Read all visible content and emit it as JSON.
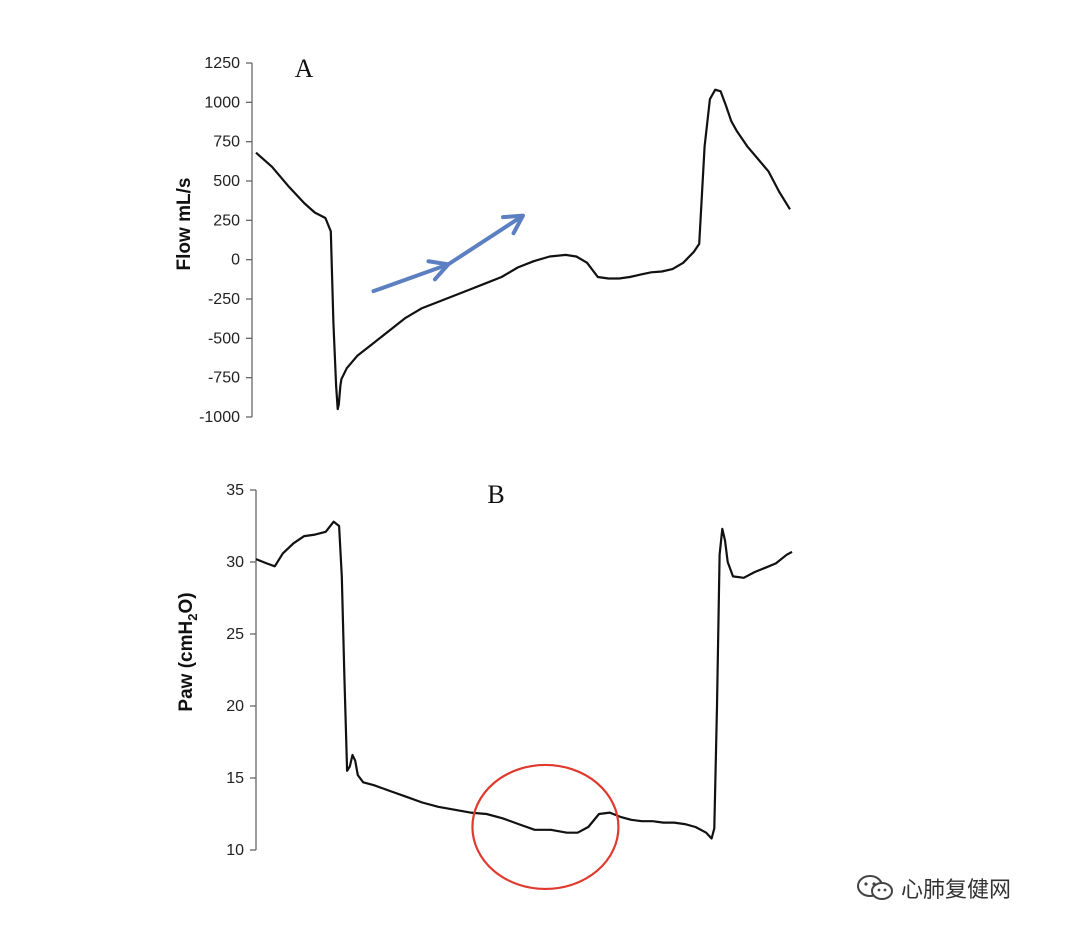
{
  "chart_data": [
    {
      "type": "line",
      "panel": "A",
      "title": "",
      "xlabel": "",
      "ylabel": "Flow mL/s",
      "ylim": [
        -1000,
        1250
      ],
      "yticks": [
        1250,
        1000,
        750,
        500,
        250,
        0,
        -250,
        -500,
        -750,
        -1000
      ],
      "ytick_labels": [
        "1250",
        "1000",
        "750",
        "500",
        "250",
        "0",
        "-250",
        "-500",
        "-750",
        "-1000"
      ],
      "grid": false,
      "xlim": [
        0,
        100
      ],
      "series": [
        {
          "color": "#111111",
          "x": [
            0,
            3,
            6,
            9,
            11,
            13,
            14,
            14.5,
            15,
            15.3,
            15.5,
            15.8,
            16,
            17,
            19,
            22,
            25,
            28,
            31,
            34,
            37,
            40,
            43,
            46,
            49,
            52,
            55,
            58,
            60,
            62,
            64,
            66,
            68,
            70,
            72,
            74,
            76,
            78,
            80,
            82,
            83,
            84,
            85,
            86,
            87,
            88,
            89,
            90,
            92,
            94,
            96,
            98,
            100
          ],
          "y": [
            680,
            590,
            470,
            360,
            300,
            265,
            180,
            -400,
            -800,
            -950,
            -920,
            -800,
            -760,
            -690,
            -610,
            -530,
            -450,
            -370,
            -310,
            -270,
            -230,
            -190,
            -150,
            -110,
            -50,
            -10,
            20,
            30,
            20,
            -20,
            -110,
            -120,
            -120,
            -110,
            -95,
            -80,
            -75,
            -60,
            -20,
            50,
            100,
            720,
            1020,
            1080,
            1070,
            980,
            880,
            820,
            720,
            640,
            560,
            430,
            320
          ]
        }
      ],
      "annotations": [
        {
          "type": "arrow",
          "color": "#5b7fc0",
          "from": [
            22,
            -200
          ],
          "to": [
            36,
            -30
          ]
        },
        {
          "type": "arrow",
          "color": "#5b7fc0",
          "from": [
            36,
            -30
          ],
          "to": [
            50,
            280
          ]
        }
      ]
    },
    {
      "type": "line",
      "panel": "B",
      "title": "",
      "xlabel": "",
      "ylabel": "Paw (cmH",
      "ylabel_sub": "2",
      "ylabel_end": "O)",
      "ylim": [
        10,
        35
      ],
      "yticks": [
        35,
        30,
        25,
        20,
        15,
        10
      ],
      "ytick_labels": [
        "35",
        "30",
        "25",
        "20",
        "15",
        "10"
      ],
      "grid": false,
      "xlim": [
        0,
        100
      ],
      "series": [
        {
          "color": "#111111",
          "x": [
            0,
            2,
            3.5,
            5,
            7,
            9,
            11,
            13,
            14.5,
            15.5,
            16,
            16.5,
            17,
            17.5,
            18,
            18.5,
            19,
            20,
            22,
            25,
            28,
            31,
            34,
            37,
            40,
            43,
            46,
            49,
            52,
            55,
            58,
            60,
            62,
            64,
            66,
            68,
            70,
            72,
            74,
            76,
            78,
            80,
            82,
            84,
            85,
            85.5,
            86,
            86.5,
            87,
            87.5,
            88,
            89,
            91,
            93,
            95,
            97,
            99,
            100
          ],
          "y": [
            30.2,
            29.9,
            29.7,
            30.6,
            31.3,
            31.8,
            31.9,
            32.1,
            32.8,
            32.5,
            29,
            22,
            15.5,
            15.8,
            16.6,
            16.2,
            15.2,
            14.7,
            14.5,
            14.1,
            13.7,
            13.3,
            13.0,
            12.8,
            12.6,
            12.5,
            12.2,
            11.8,
            11.4,
            11.4,
            11.2,
            11.2,
            11.6,
            12.5,
            12.6,
            12.3,
            12.1,
            12.0,
            12.0,
            11.9,
            11.9,
            11.8,
            11.6,
            11.2,
            10.8,
            11.5,
            20,
            30.5,
            32.3,
            31.5,
            30.0,
            29.0,
            28.9,
            29.3,
            29.6,
            29.9,
            30.5,
            30.7
          ]
        }
      ],
      "annotations": [
        {
          "type": "ellipse",
          "color": "#e03a2e",
          "center": [
            54,
            11.6
          ]
        }
      ]
    }
  ],
  "watermark": {
    "icon": "wechat-logo-icon",
    "text": "心肺复健网"
  }
}
